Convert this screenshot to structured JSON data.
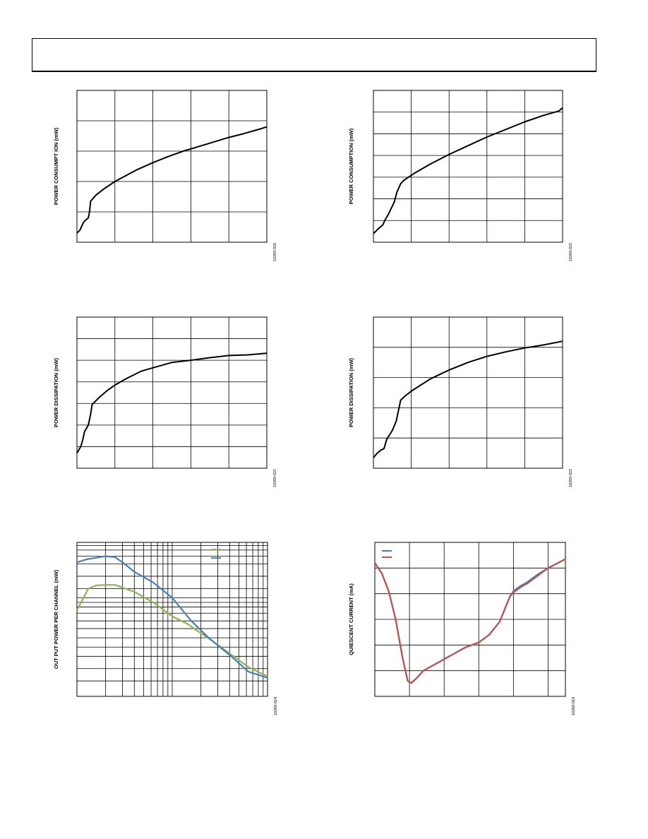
{
  "chart_data": [
    {
      "id": "c1",
      "type": "line",
      "title": "",
      "xlabel": "",
      "ylabel": "POWER CONSUMPT ION (mW)",
      "figure_id": "10269-020",
      "xlim": [
        0,
        5
      ],
      "ylim": [
        0,
        5
      ],
      "x_gridlines": 5,
      "y_gridlines": 5,
      "xscale": "linear",
      "legend": null,
      "series": [
        {
          "color": "#000000",
          "x": [
            0,
            0.08,
            0.15,
            0.2,
            0.3,
            0.33,
            0.36,
            0.5,
            0.7,
            1.0,
            1.3,
            1.6,
            2.0,
            2.4,
            2.8,
            3.2,
            3.6,
            4.0,
            4.4,
            4.8,
            5.0
          ],
          "y": [
            0.3,
            0.4,
            0.6,
            0.7,
            0.8,
            1.0,
            1.35,
            1.55,
            1.75,
            2.0,
            2.2,
            2.4,
            2.62,
            2.82,
            3.0,
            3.15,
            3.3,
            3.45,
            3.58,
            3.72,
            3.8
          ]
        }
      ]
    },
    {
      "id": "c2",
      "type": "line",
      "title": "",
      "xlabel": "",
      "ylabel": "POWER CONSUMPTION (mW)",
      "figure_id": "10269-022",
      "xlim": [
        0,
        5
      ],
      "ylim": [
        0,
        7
      ],
      "x_gridlines": 5,
      "y_gridlines": 7,
      "xscale": "linear",
      "legend": null,
      "series": [
        {
          "color": "#000000",
          "x": [
            0,
            0.15,
            0.25,
            0.3,
            0.4,
            0.55,
            0.62,
            0.72,
            0.8,
            1.1,
            1.5,
            2.0,
            2.5,
            3.0,
            3.5,
            4.0,
            4.5,
            4.9,
            5.0
          ],
          "y": [
            0.4,
            0.65,
            0.8,
            1.0,
            1.3,
            1.85,
            2.3,
            2.7,
            2.85,
            3.2,
            3.6,
            4.05,
            4.45,
            4.85,
            5.2,
            5.55,
            5.85,
            6.05,
            6.2
          ]
        }
      ]
    },
    {
      "id": "c3",
      "type": "line",
      "title": "",
      "xlabel": "",
      "ylabel": "POWER DISSIPATION (mW)",
      "figure_id": "10269-021",
      "xlim": [
        0,
        5
      ],
      "ylim": [
        0,
        7
      ],
      "x_gridlines": 5,
      "y_gridlines": 7,
      "xscale": "linear",
      "legend": null,
      "series": [
        {
          "color": "#000000",
          "x": [
            0,
            0.1,
            0.15,
            0.2,
            0.3,
            0.36,
            0.4,
            0.6,
            0.8,
            1.0,
            1.3,
            1.7,
            2.0,
            2.5,
            3.0,
            3.5,
            4.0,
            4.5,
            5.0
          ],
          "y": [
            0.7,
            1.0,
            1.3,
            1.7,
            2.0,
            2.5,
            2.95,
            3.3,
            3.6,
            3.85,
            4.15,
            4.5,
            4.65,
            4.9,
            5.0,
            5.12,
            5.22,
            5.25,
            5.33
          ]
        }
      ]
    },
    {
      "id": "c4",
      "type": "line",
      "title": "",
      "xlabel": "",
      "ylabel": "POWER DISSIPATION (mW)",
      "figure_id": "10269-022",
      "xlim": [
        0,
        5
      ],
      "ylim": [
        0,
        5
      ],
      "x_gridlines": 5,
      "y_gridlines": 5,
      "xscale": "linear",
      "legend": null,
      "series": [
        {
          "color": "#000000",
          "x": [
            0,
            0.1,
            0.2,
            0.28,
            0.35,
            0.5,
            0.6,
            0.72,
            0.8,
            1.0,
            1.5,
            2.0,
            2.5,
            3.0,
            3.5,
            4.0,
            4.5,
            5.0
          ],
          "y": [
            0.35,
            0.5,
            0.6,
            0.65,
            0.95,
            1.25,
            1.55,
            2.25,
            2.35,
            2.55,
            2.95,
            3.25,
            3.5,
            3.7,
            3.85,
            3.98,
            4.08,
            4.2
          ]
        }
      ]
    },
    {
      "id": "c5",
      "type": "line",
      "title": "",
      "xlabel": "",
      "ylabel": "OUT PUT POWER PER CHANNEL (mW)",
      "figure_id": "10269-024",
      "xlim": [
        0,
        10
      ],
      "ylim": [
        0,
        5
      ],
      "x_gridlines": 10,
      "y_gridlines": 5,
      "xscale": "log",
      "legend": "top-right",
      "series": [
        {
          "color": "#8db356",
          "x": [
            0,
            0.3,
            0.6,
            1.0,
            1.5,
            2.0,
            3.0,
            4.0,
            5.0,
            5.8,
            6.5,
            7.0,
            8.0,
            9.0,
            10.0
          ],
          "y": [
            2.8,
            3.15,
            3.5,
            3.6,
            3.62,
            3.62,
            3.4,
            3.05,
            2.6,
            2.35,
            2.05,
            1.85,
            1.4,
            0.95,
            0.65
          ]
        },
        {
          "color": "#4a7ebb",
          "x": [
            0,
            0.5,
            1.0,
            1.5,
            2.0,
            2.5,
            3.0,
            4.0,
            5.0,
            6.0,
            6.5,
            7.0,
            8.0,
            9.0,
            10.0
          ],
          "y": [
            4.35,
            4.45,
            4.5,
            4.55,
            4.52,
            4.3,
            4.05,
            3.7,
            3.2,
            2.45,
            2.15,
            1.85,
            1.35,
            0.8,
            0.6
          ]
        }
      ]
    },
    {
      "id": "c6",
      "type": "line",
      "title": "",
      "xlabel": "",
      "ylabel": "QUIESCENT CURRENT (mA)",
      "figure_id": "10269-019",
      "xlim": [
        0,
        5.5
      ],
      "ylim": [
        0,
        6
      ],
      "x_gridlines": 5.5,
      "y_gridlines": 6,
      "xscale": "linear",
      "legend": "top-left",
      "series": [
        {
          "color": "#4a7ebb",
          "x": [
            0,
            0.2,
            0.4,
            0.6,
            0.8,
            0.95,
            1.05,
            1.2,
            1.4,
            1.8,
            2.2,
            2.6,
            3.0,
            3.3,
            3.6,
            3.9,
            4.0,
            4.2,
            4.4,
            4.7,
            5.0,
            5.5
          ],
          "y": [
            5.2,
            4.8,
            4.1,
            3.0,
            1.5,
            0.6,
            0.52,
            0.7,
            1.0,
            1.3,
            1.6,
            1.9,
            2.1,
            2.4,
            2.9,
            3.9,
            4.1,
            4.3,
            4.45,
            4.75,
            5.0,
            5.35
          ]
        },
        {
          "color": "#c0504d",
          "x": [
            0,
            0.2,
            0.4,
            0.6,
            0.8,
            0.95,
            1.05,
            1.2,
            1.4,
            1.8,
            2.2,
            2.6,
            3.0,
            3.3,
            3.6,
            3.9,
            4.0,
            4.2,
            4.4,
            4.7,
            5.0,
            5.5
          ],
          "y": [
            5.2,
            4.8,
            4.1,
            3.0,
            1.5,
            0.6,
            0.52,
            0.7,
            1.0,
            1.3,
            1.6,
            1.9,
            2.1,
            2.4,
            2.9,
            3.9,
            4.05,
            4.25,
            4.4,
            4.7,
            5.0,
            5.35
          ]
        }
      ]
    }
  ]
}
